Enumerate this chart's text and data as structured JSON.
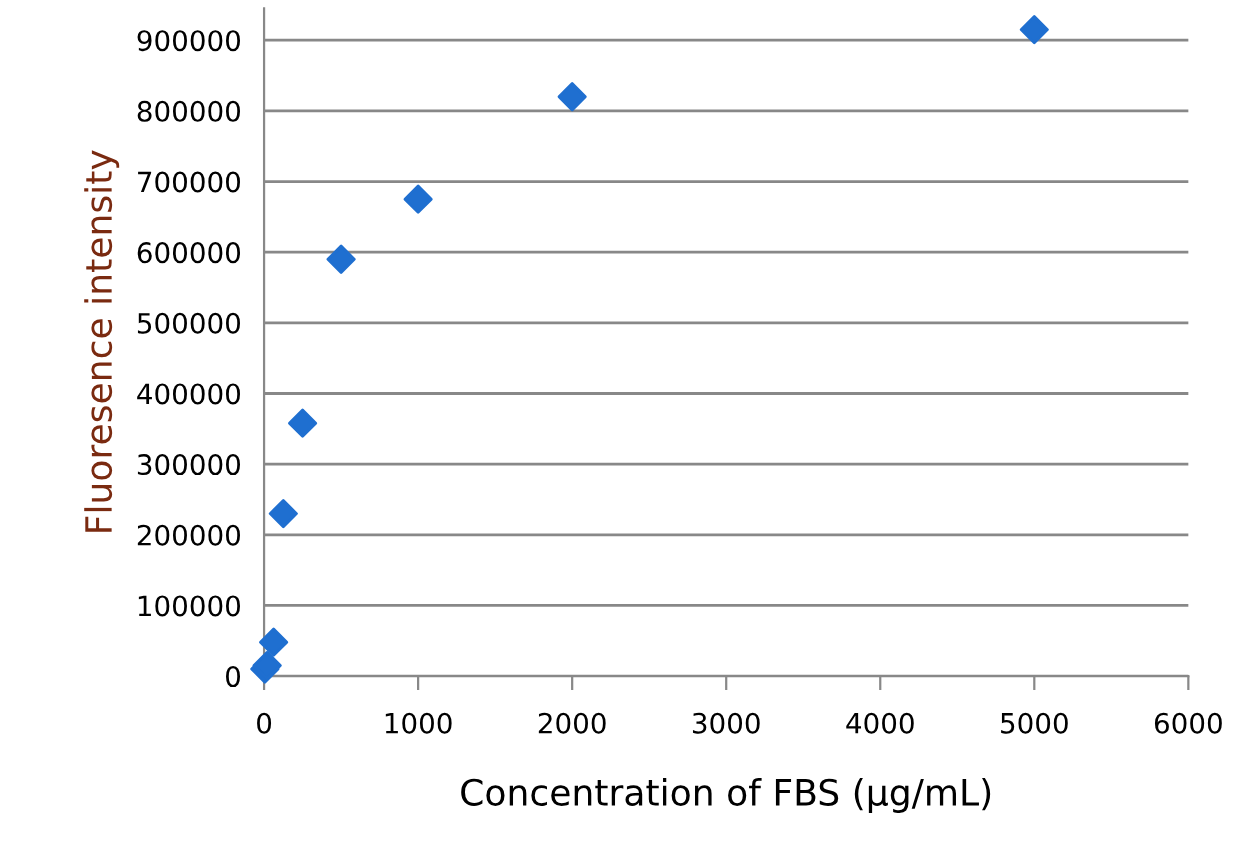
{
  "chart_data": {
    "type": "scatter",
    "xlabel": "Concentration of FBS (μg/mL)",
    "ylabel": "Fluoresence intensity",
    "series": [
      {
        "color": "#1f6fd0",
        "x": [
          5,
          20,
          62,
          125,
          250,
          500,
          1000,
          2000,
          5000
        ],
        "values": [
          10000,
          15000,
          48000,
          230000,
          358000,
          590000,
          675000,
          820000,
          915000
        ]
      }
    ],
    "xlim": [
      0,
      6000
    ],
    "xticks": [
      0,
      1000,
      2000,
      3000,
      4000,
      5000,
      6000
    ],
    "ylim": [
      0,
      945000
    ],
    "yticks": [
      0,
      100000,
      200000,
      300000,
      400000,
      500000,
      600000,
      700000,
      800000,
      900000
    ],
    "grid": "y",
    "marker": "diamond"
  }
}
